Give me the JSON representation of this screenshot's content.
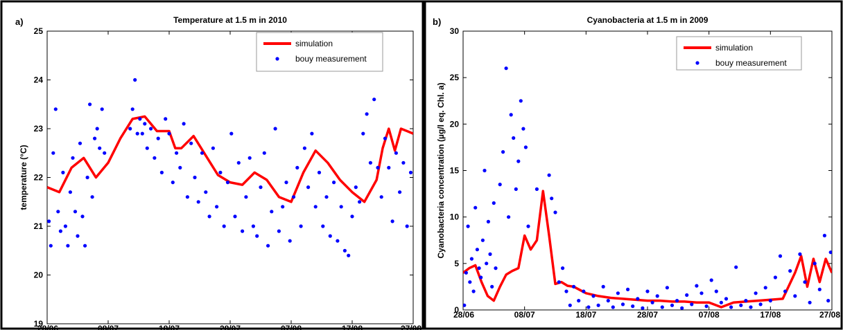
{
  "chart_data": [
    {
      "panel": "a)",
      "type": "line",
      "title": "Temperature at 1.5 m in 2010",
      "xlabel": "",
      "ylabel": "temperature (°C)",
      "x_ticks": [
        "28/06",
        "08/07",
        "18/07",
        "28/07",
        "07/08",
        "17/08",
        "27/08"
      ],
      "x_ticks_day": [
        0,
        10,
        20,
        30,
        40,
        50,
        60
      ],
      "xlim": [
        0,
        60
      ],
      "ylim": [
        19,
        25
      ],
      "y_ticks": [
        19,
        20,
        21,
        22,
        23,
        24,
        25
      ],
      "grid": false,
      "legend_position": "top-right",
      "series": [
        {
          "name": "simulation",
          "kind": "line",
          "color": "#ff0000",
          "x": [
            0,
            2,
            4,
            6,
            8,
            10,
            12,
            14,
            16,
            18,
            20,
            21,
            22,
            24,
            26,
            28,
            30,
            32,
            34,
            36,
            38,
            40,
            42,
            44,
            46,
            48,
            50,
            52,
            54,
            55,
            56,
            57,
            58,
            59,
            60
          ],
          "y": [
            21.8,
            21.7,
            22.2,
            22.4,
            22.0,
            22.3,
            22.8,
            23.2,
            23.25,
            22.95,
            22.95,
            22.6,
            22.6,
            22.85,
            22.45,
            22.05,
            21.9,
            21.85,
            22.1,
            21.95,
            21.6,
            21.5,
            22.1,
            22.55,
            22.3,
            21.95,
            21.7,
            21.5,
            21.95,
            22.6,
            23.0,
            22.55,
            23.0,
            22.95,
            22.9
          ]
        },
        {
          "name": "bouy measurement",
          "kind": "scatter",
          "color": "#0000ff",
          "x": [
            0.3,
            0.6,
            1.0,
            1.4,
            1.8,
            2.2,
            2.6,
            3.0,
            3.4,
            3.8,
            4.2,
            4.6,
            5.0,
            5.4,
            5.8,
            6.2,
            6.6,
            7.0,
            7.4,
            7.8,
            8.2,
            8.6,
            9.0,
            9.4,
            13.6,
            14.0,
            14.4,
            14.8,
            15.2,
            15.6,
            16.0,
            16.4,
            17.0,
            17.6,
            18.2,
            18.8,
            19.4,
            20.0,
            20.6,
            21.2,
            21.8,
            22.4,
            23.0,
            23.6,
            24.2,
            24.8,
            25.4,
            26.0,
            26.6,
            27.2,
            27.8,
            28.4,
            29.0,
            29.6,
            30.2,
            30.8,
            31.4,
            32.0,
            32.6,
            33.2,
            33.8,
            34.4,
            35.0,
            35.6,
            36.2,
            36.8,
            37.4,
            38.0,
            38.6,
            39.2,
            39.8,
            40.4,
            41.0,
            41.6,
            42.2,
            42.8,
            43.4,
            44.0,
            44.6,
            45.2,
            45.8,
            46.4,
            47.0,
            47.6,
            48.2,
            48.8,
            49.4,
            50.0,
            50.6,
            51.2,
            51.8,
            52.4,
            53.0,
            53.6,
            54.2,
            54.8,
            55.4,
            56.0,
            56.6,
            57.2,
            57.8,
            58.4,
            59.0,
            59.6
          ],
          "y": [
            21.1,
            20.6,
            22.5,
            23.4,
            21.3,
            20.9,
            22.1,
            21.0,
            20.6,
            21.7,
            22.4,
            21.3,
            20.8,
            22.7,
            21.2,
            20.6,
            22.0,
            23.5,
            21.6,
            22.8,
            23.0,
            22.6,
            23.4,
            22.5,
            23.0,
            23.4,
            24.0,
            22.9,
            23.2,
            22.9,
            23.1,
            22.6,
            23.0,
            22.4,
            22.8,
            22.1,
            23.2,
            22.9,
            21.9,
            22.5,
            22.2,
            23.1,
            21.6,
            22.7,
            22.0,
            21.5,
            22.5,
            21.7,
            21.2,
            22.6,
            21.4,
            22.1,
            21.0,
            21.9,
            22.9,
            21.2,
            22.3,
            20.9,
            21.6,
            22.4,
            21.0,
            20.8,
            21.8,
            22.5,
            20.6,
            21.3,
            23.0,
            20.9,
            21.4,
            21.9,
            20.7,
            21.6,
            22.2,
            21.0,
            22.6,
            21.8,
            22.9,
            21.4,
            22.1,
            21.0,
            21.6,
            20.8,
            21.9,
            20.7,
            21.4,
            20.5,
            20.4,
            21.2,
            21.8,
            21.5,
            22.9,
            23.3,
            22.3,
            23.6,
            22.2,
            21.6,
            22.8,
            22.2,
            21.1,
            22.5,
            21.7,
            22.3,
            21.0,
            22.1
          ]
        }
      ]
    },
    {
      "panel": "b)",
      "type": "line",
      "title": "Cyanobacteria at 1.5 m in 2009",
      "xlabel": "",
      "ylabel": "Cyanobacteria concentration (µg/l eq. Chl. a)",
      "x_ticks": [
        "28/06",
        "08/07",
        "18/07",
        "28/07",
        "07/08",
        "17/08",
        "27/08"
      ],
      "x_ticks_day": [
        0,
        10,
        20,
        30,
        40,
        50,
        60
      ],
      "xlim": [
        0,
        60
      ],
      "ylim": [
        0,
        30
      ],
      "y_ticks": [
        0,
        5,
        10,
        15,
        20,
        25,
        30
      ],
      "grid": false,
      "legend_position": "top-right",
      "series": [
        {
          "name": "simulation",
          "kind": "line",
          "color": "#ff0000",
          "x": [
            0,
            1,
            2,
            3,
            4,
            5,
            6,
            7,
            8,
            9,
            10,
            11,
            12,
            13,
            14,
            15,
            16,
            17,
            18,
            20,
            22,
            24,
            26,
            28,
            30,
            32,
            34,
            36,
            38,
            40,
            42,
            44,
            46,
            48,
            50,
            52,
            54,
            55,
            56,
            57,
            58,
            59,
            60
          ],
          "y": [
            4.0,
            4.5,
            4.8,
            3.0,
            1.5,
            1.0,
            2.5,
            3.8,
            4.2,
            4.5,
            8.0,
            6.5,
            7.5,
            12.8,
            8.0,
            2.8,
            3.0,
            2.6,
            2.5,
            1.8,
            1.5,
            1.3,
            1.2,
            1.1,
            1.0,
            1.0,
            0.9,
            0.9,
            0.8,
            0.8,
            0.3,
            0.8,
            0.9,
            1.0,
            1.1,
            1.2,
            4.0,
            5.8,
            2.5,
            5.5,
            3.0,
            5.5,
            4.0
          ]
        },
        {
          "name": "bouy measurement",
          "kind": "scatter",
          "color": "#0000ff",
          "x": [
            0.2,
            0.5,
            0.8,
            1.1,
            1.4,
            1.7,
            2.0,
            2.3,
            2.6,
            2.9,
            3.2,
            3.5,
            3.8,
            4.1,
            4.4,
            4.7,
            5.0,
            5.3,
            6.0,
            6.5,
            7.0,
            7.4,
            7.8,
            8.2,
            8.6,
            9.0,
            9.4,
            9.8,
            10.2,
            10.6,
            12.0,
            14.0,
            14.4,
            15.0,
            15.6,
            16.2,
            16.8,
            17.4,
            18.0,
            18.8,
            19.6,
            20.4,
            21.2,
            22.0,
            22.8,
            23.6,
            24.4,
            25.2,
            26.0,
            26.8,
            27.6,
            28.4,
            29.2,
            30.0,
            30.8,
            31.6,
            32.4,
            33.2,
            34.0,
            34.8,
            35.6,
            36.4,
            37.2,
            38.0,
            38.8,
            39.6,
            40.4,
            41.2,
            42.0,
            42.8,
            43.6,
            44.4,
            45.2,
            46.0,
            46.8,
            47.6,
            48.4,
            49.2,
            50.0,
            50.8,
            51.6,
            52.4,
            53.2,
            54.0,
            54.8,
            55.6,
            56.4,
            57.2,
            58.0,
            58.8,
            59.4,
            59.8
          ],
          "y": [
            0.5,
            4.0,
            9.0,
            3.0,
            5.5,
            2.0,
            11.0,
            6.5,
            4.5,
            3.5,
            7.5,
            15.0,
            5.0,
            9.5,
            6.0,
            2.5,
            11.5,
            4.5,
            13.5,
            17.0,
            26.0,
            10.0,
            21.0,
            18.5,
            13.0,
            16.0,
            22.5,
            19.5,
            17.5,
            9.0,
            13.0,
            14.5,
            12.0,
            10.5,
            3.0,
            4.5,
            2.0,
            0.5,
            2.5,
            1.0,
            2.0,
            0.3,
            1.5,
            0.5,
            2.5,
            1.0,
            0.3,
            1.8,
            0.6,
            2.2,
            0.4,
            1.2,
            0.2,
            2.0,
            0.8,
            1.5,
            0.3,
            2.4,
            0.5,
            1.0,
            0.2,
            1.6,
            0.6,
            2.6,
            1.8,
            0.4,
            3.2,
            2.0,
            0.8,
            1.2,
            0.3,
            4.6,
            0.5,
            1.0,
            0.3,
            1.8,
            0.6,
            2.4,
            1.0,
            3.5,
            5.8,
            2.0,
            4.2,
            1.5,
            6.0,
            3.0,
            0.8,
            5.0,
            2.2,
            8.0,
            1.0,
            6.2
          ]
        }
      ]
    }
  ]
}
